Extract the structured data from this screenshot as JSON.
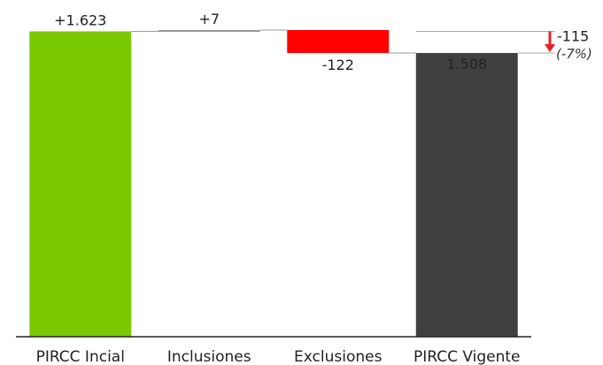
{
  "chart_data": {
    "type": "bar",
    "subtype": "waterfall",
    "categories": [
      "PIRCC Incial",
      "Inclusiones",
      "Exclusiones",
      "PIRCC Vigente"
    ],
    "steps": [
      {
        "category": "PIRCC Incial",
        "kind": "total",
        "value": 1623,
        "label": "+1.623",
        "color": "#7ac900"
      },
      {
        "category": "Inclusiones",
        "kind": "increase",
        "value": 7,
        "label": "+7",
        "color": "#999999"
      },
      {
        "category": "Exclusiones",
        "kind": "decrease",
        "value": -122,
        "label": "-122",
        "color": "#ff0000"
      },
      {
        "category": "PIRCC Vigente",
        "kind": "total",
        "value": 1508,
        "label": "1.508",
        "color": "#404040"
      }
    ],
    "difference": {
      "value": -115,
      "label": "-115",
      "percent_label": "(-7%)",
      "arrow_color": "#e8202a"
    },
    "ylim": [
      0,
      1630
    ],
    "grid": false,
    "legend": "none"
  }
}
